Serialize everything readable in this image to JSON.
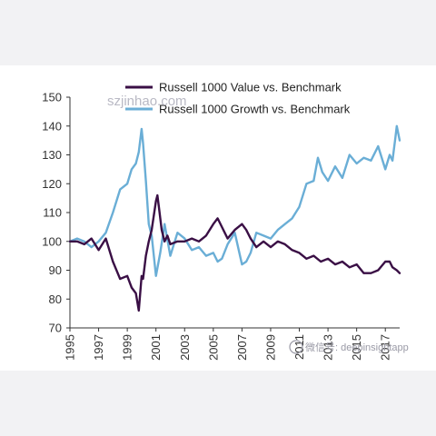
{
  "chart_data": {
    "type": "line",
    "title": "",
    "xlabel": "",
    "ylabel": "",
    "ylim": [
      70,
      150
    ],
    "xlim": [
      1995,
      2018
    ],
    "y_ticks": [
      "70",
      "80",
      "90",
      "100",
      "110",
      "120",
      "130",
      "140",
      "150"
    ],
    "x_ticks": [
      "1995",
      "1997",
      "1999",
      "2001",
      "2003",
      "2005",
      "2007",
      "2009",
      "2011",
      "2013",
      "2015",
      "2017"
    ],
    "legend_position": "top",
    "grid": false,
    "series": [
      {
        "name": "Russell 1000 Value vs. Benchmark",
        "color": "#3a0f45",
        "x": [
          1995.0,
          1995.5,
          1996.0,
          1996.5,
          1997.0,
          1997.5,
          1998.0,
          1998.5,
          1999.0,
          1999.3,
          1999.6,
          1999.8,
          2000.0,
          2000.1,
          2000.3,
          2000.5,
          2000.7,
          2001.0,
          2001.1,
          2001.2,
          2001.4,
          2001.6,
          2001.8,
          2002.0,
          2002.5,
          2003.0,
          2003.5,
          2004.0,
          2004.5,
          2005.0,
          2005.3,
          2005.6,
          2006.0,
          2006.5,
          2007.0,
          2007.3,
          2007.6,
          2008.0,
          2008.5,
          2009.0,
          2009.5,
          2010.0,
          2010.5,
          2011.0,
          2011.5,
          2012.0,
          2012.5,
          2013.0,
          2013.5,
          2014.0,
          2014.5,
          2015.0,
          2015.5,
          2016.0,
          2016.5,
          2017.0,
          2017.3,
          2017.5,
          2017.8,
          2018.0
        ],
        "values": [
          100,
          100,
          99,
          101,
          97,
          101,
          93,
          87,
          88,
          84,
          82,
          76,
          88,
          87,
          95,
          100,
          104,
          114,
          116,
          112,
          104,
          100,
          102,
          99,
          100,
          100,
          101,
          100,
          102,
          106,
          108,
          105,
          101,
          104,
          106,
          104,
          101,
          98,
          100,
          98,
          100,
          99,
          97,
          96,
          94,
          95,
          93,
          94,
          92,
          93,
          91,
          92,
          89,
          89,
          90,
          93,
          93,
          91,
          90,
          89
        ]
      },
      {
        "name": "Russell 1000 Growth vs. Benchmark",
        "color": "#6aaed6",
        "x": [
          1995.0,
          1995.5,
          1996.0,
          1996.5,
          1997.0,
          1997.5,
          1998.0,
          1998.5,
          1999.0,
          1999.3,
          1999.6,
          1999.8,
          2000.0,
          2000.1,
          2000.3,
          2000.5,
          2000.7,
          2001.0,
          2001.3,
          2001.6,
          2002.0,
          2002.5,
          2003.0,
          2003.5,
          2004.0,
          2004.5,
          2005.0,
          2005.3,
          2005.6,
          2006.0,
          2006.5,
          2007.0,
          2007.3,
          2007.6,
          2008.0,
          2008.5,
          2009.0,
          2009.5,
          2010.0,
          2010.5,
          2011.0,
          2011.5,
          2012.0,
          2012.3,
          2012.6,
          2013.0,
          2013.5,
          2014.0,
          2014.5,
          2015.0,
          2015.5,
          2016.0,
          2016.5,
          2017.0,
          2017.3,
          2017.5,
          2017.7,
          2017.8,
          2018.0
        ],
        "values": [
          100,
          101,
          100,
          98,
          100,
          103,
          110,
          118,
          120,
          125,
          127,
          131,
          139,
          134,
          121,
          106,
          102,
          88,
          96,
          106,
          95,
          103,
          101,
          97,
          98,
          95,
          96,
          93,
          94,
          99,
          103,
          92,
          93,
          96,
          103,
          102,
          101,
          104,
          106,
          108,
          112,
          120,
          121,
          129,
          124,
          121,
          126,
          122,
          130,
          127,
          129,
          128,
          133,
          125,
          130,
          128,
          136,
          140,
          135
        ]
      }
    ]
  },
  "watermark": {
    "url_text": "szjinhao.com",
    "wechat_text": "微信号: deepinsightapp"
  }
}
